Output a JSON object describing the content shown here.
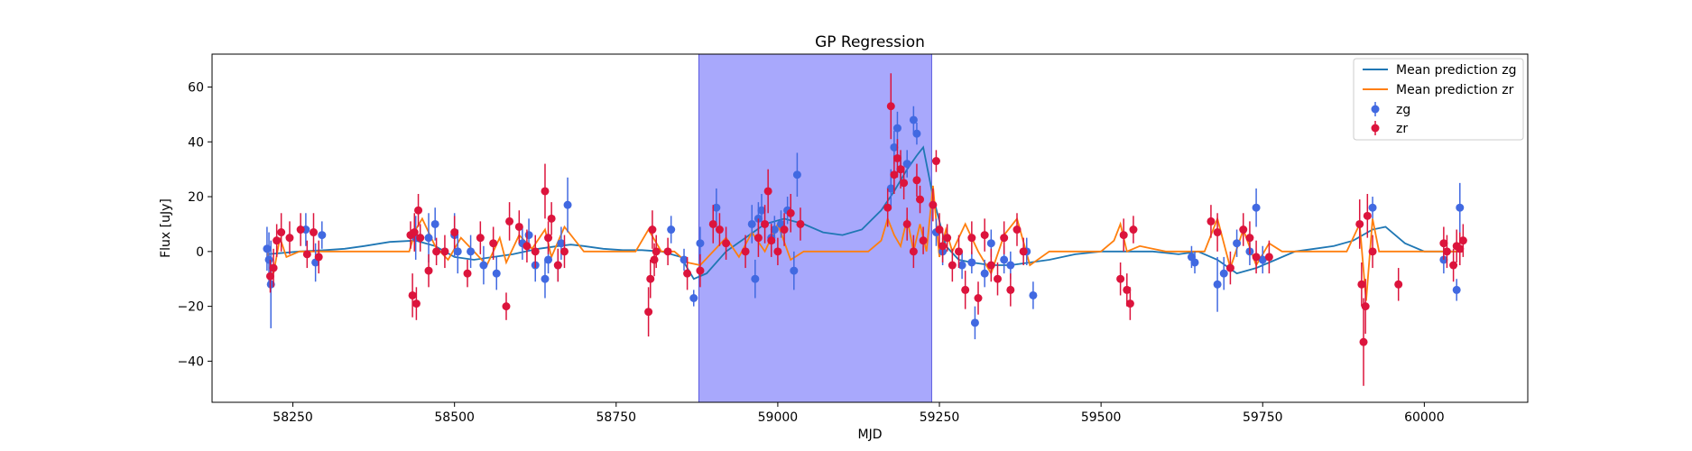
{
  "chart_data": {
    "type": "scatter",
    "title": "GP Regression",
    "xlabel": "MJD",
    "ylabel": "Flux [uJy]",
    "xlim": [
      58125,
      60160
    ],
    "ylim": [
      -55,
      72
    ],
    "xticks": [
      58250,
      58500,
      58750,
      59000,
      59250,
      59500,
      59750,
      60000
    ],
    "yticks": [
      -40,
      -20,
      0,
      20,
      40,
      60
    ],
    "grid": false,
    "legend_position": "top-right",
    "shaded_region": {
      "x_start": 58878,
      "x_end": 59238,
      "color": "#a8a8fc"
    },
    "series": [
      {
        "name": "Mean prediction zg",
        "kind": "line",
        "color": "#1f77b4",
        "x": [
          58210,
          58260,
          58300,
          58330,
          58360,
          58400,
          58440,
          58470,
          58500,
          58530,
          58560,
          58590,
          58610,
          58630,
          58660,
          58680,
          58700,
          58730,
          58760,
          58790,
          58820,
          58850,
          58870,
          58890,
          58920,
          58950,
          58980,
          59010,
          59040,
          59070,
          59100,
          59130,
          59160,
          59180,
          59200,
          59215,
          59225,
          59240,
          59260,
          59280,
          59300,
          59330,
          59360,
          59390,
          59420,
          59460,
          59500,
          59540,
          59580,
          59620,
          59650,
          59680,
          59710,
          59740,
          59770,
          59800,
          59830,
          59860,
          59890,
          59920,
          59940,
          59970,
          60000,
          60030,
          60060
        ],
        "y": [
          -1,
          0,
          0.5,
          1,
          2,
          3.5,
          4,
          2,
          -2,
          -3,
          -2,
          -1,
          0,
          1,
          2,
          2.5,
          2,
          1,
          0.5,
          0.5,
          0,
          -2,
          -10,
          -8,
          0,
          5,
          10,
          12,
          10,
          7,
          6,
          8,
          15,
          22,
          30,
          35,
          38,
          20,
          2,
          -3,
          -4,
          -5,
          -5,
          -4,
          -3,
          -1,
          0,
          0,
          0,
          -1,
          0,
          -3,
          -8,
          -6,
          -3,
          0,
          1,
          2,
          4,
          8,
          9,
          3,
          0,
          0,
          0
        ]
      },
      {
        "name": "Mean prediction zr",
        "kind": "line",
        "color": "#ff7f0e",
        "x": [
          58210,
          58220,
          58230,
          58240,
          58260,
          58300,
          58380,
          58430,
          58440,
          58450,
          58470,
          58490,
          58510,
          58530,
          58550,
          58570,
          58580,
          58600,
          58620,
          58640,
          58650,
          58670,
          58700,
          58780,
          58800,
          58820,
          58840,
          58860,
          58880,
          58900,
          58920,
          58940,
          58960,
          58980,
          59000,
          59020,
          59040,
          59080,
          59140,
          59160,
          59170,
          59180,
          59190,
          59200,
          59210,
          59220,
          59230,
          59240,
          59250,
          59260,
          59270,
          59290,
          59310,
          59330,
          59350,
          59370,
          59390,
          59420,
          59500,
          59520,
          59530,
          59540,
          59560,
          59600,
          59660,
          59680,
          59700,
          59720,
          59740,
          59760,
          59780,
          59800,
          59880,
          59900,
          59910,
          59920,
          59930,
          59950,
          59980,
          60000,
          60020,
          60040,
          60060
        ],
        "y": [
          0,
          -8,
          5,
          -2,
          0,
          0,
          0,
          0,
          8,
          12,
          2,
          -3,
          5,
          0,
          -5,
          5,
          -4,
          6,
          1,
          8,
          -2,
          9,
          0,
          0,
          8,
          0,
          0,
          -4,
          -5,
          0,
          5,
          -2,
          7,
          0,
          10,
          -3,
          0,
          0,
          0,
          4,
          12,
          6,
          2,
          12,
          0,
          10,
          0,
          24,
          -2,
          8,
          0,
          10,
          0,
          -8,
          6,
          12,
          -5,
          0,
          0,
          4,
          10,
          0,
          2,
          0,
          0,
          12,
          -6,
          8,
          -5,
          3,
          0,
          0,
          0,
          10,
          -18,
          12,
          0,
          0,
          0,
          0,
          0,
          0,
          0
        ]
      },
      {
        "name": "zg",
        "kind": "errorbar",
        "color": "#4169e1",
        "x": [
          58210,
          58213,
          58216,
          58270,
          58285,
          58295,
          58440,
          58460,
          58470,
          58500,
          58505,
          58525,
          58545,
          58565,
          58605,
          58615,
          58625,
          58640,
          58645,
          58660,
          58665,
          58675,
          58835,
          58855,
          58870,
          58880,
          58905,
          58960,
          58965,
          58970,
          58975,
          58990,
          58995,
          59005,
          59015,
          59025,
          59030,
          59175,
          59180,
          59185,
          59190,
          59200,
          59210,
          59215,
          59245,
          59255,
          59285,
          59300,
          59305,
          59320,
          59330,
          59350,
          59360,
          59385,
          59395,
          59640,
          59645,
          59680,
          59690,
          59710,
          59730,
          59740,
          59750,
          59920,
          60030,
          60050,
          60055
        ],
        "y": [
          1,
          -3,
          -12,
          8,
          -4,
          6,
          5,
          5,
          10,
          6,
          0,
          0,
          -5,
          -8,
          3,
          6,
          -5,
          -10,
          -3,
          -5,
          3,
          17,
          8,
          -3,
          -17,
          3,
          16,
          10,
          -10,
          12,
          15,
          5,
          8,
          10,
          15,
          -7,
          28,
          23,
          38,
          45,
          30,
          32,
          48,
          43,
          7,
          0,
          -5,
          -4,
          -26,
          -8,
          3,
          -3,
          -5,
          0,
          -16,
          -2,
          -4,
          -12,
          -8,
          3,
          0,
          16,
          -3,
          16,
          -3,
          -14,
          16
        ],
        "err": [
          8,
          10,
          16,
          6,
          7,
          5,
          8,
          9,
          6,
          8,
          8,
          6,
          7,
          6,
          6,
          6,
          6,
          7,
          5,
          6,
          6,
          10,
          5,
          4,
          3,
          6,
          7,
          7,
          7,
          6,
          6,
          6,
          5,
          5,
          5,
          7,
          8,
          7,
          6,
          6,
          5,
          5,
          5,
          4,
          5,
          5,
          5,
          4,
          6,
          5,
          5,
          5,
          5,
          5,
          5,
          4,
          4,
          10,
          6,
          5,
          5,
          7,
          5,
          4,
          5,
          4,
          9
        ]
      },
      {
        "name": "zr",
        "kind": "errorbar",
        "color": "#dc143c",
        "x": [
          58215,
          58220,
          58225,
          58232,
          58245,
          58262,
          58272,
          58282,
          58290,
          58432,
          58435,
          58438,
          58441,
          58444,
          58447,
          58460,
          58472,
          58485,
          58500,
          58520,
          58540,
          58560,
          58580,
          58585,
          58600,
          58612,
          58625,
          58640,
          58645,
          58650,
          58660,
          58670,
          58800,
          58803,
          58806,
          58809,
          58812,
          58830,
          58860,
          58880,
          58900,
          58910,
          58920,
          58950,
          58970,
          58980,
          58985,
          58990,
          59000,
          59010,
          59020,
          59035,
          59170,
          59175,
          59180,
          59185,
          59190,
          59195,
          59200,
          59210,
          59215,
          59220,
          59225,
          59240,
          59245,
          59250,
          59255,
          59262,
          59270,
          59280,
          59290,
          59300,
          59310,
          59320,
          59330,
          59340,
          59350,
          59360,
          59370,
          59380,
          59530,
          59535,
          59540,
          59545,
          59550,
          59670,
          59680,
          59700,
          59720,
          59730,
          59740,
          59760,
          59900,
          59903,
          59906,
          59909,
          59912,
          59920,
          59960,
          60030,
          60035,
          60045,
          60050,
          60055,
          60060
        ],
        "y": [
          -9,
          -6,
          4,
          7,
          5,
          8,
          -1,
          7,
          -2,
          6,
          -16,
          7,
          -19,
          15,
          5,
          -7,
          0,
          0,
          7,
          -8,
          5,
          3,
          -20,
          11,
          9,
          2,
          0,
          22,
          5,
          12,
          -5,
          0,
          -22,
          -10,
          8,
          -3,
          0,
          0,
          -8,
          -7,
          10,
          8,
          3,
          0,
          5,
          10,
          22,
          4,
          0,
          8,
          14,
          10,
          16,
          53,
          28,
          34,
          30,
          25,
          10,
          0,
          26,
          19,
          4,
          17,
          33,
          8,
          2,
          5,
          -5,
          0,
          -14,
          5,
          -17,
          6,
          -5,
          -10,
          5,
          -14,
          8,
          0,
          -10,
          6,
          -14,
          -19,
          8,
          11,
          7,
          -6,
          8,
          5,
          -2,
          -2,
          10,
          -12,
          -33,
          -20,
          13,
          0,
          -12,
          3,
          0,
          -5,
          2,
          1,
          4
        ],
        "err": [
          6,
          7,
          6,
          7,
          6,
          6,
          5,
          7,
          6,
          5,
          8,
          7,
          6,
          6,
          5,
          6,
          5,
          6,
          6,
          5,
          6,
          6,
          5,
          7,
          6,
          6,
          6,
          10,
          6,
          6,
          6,
          6,
          9,
          7,
          7,
          6,
          6,
          5,
          6,
          6,
          7,
          6,
          6,
          6,
          7,
          7,
          8,
          6,
          5,
          6,
          7,
          6,
          7,
          12,
          7,
          7,
          7,
          6,
          6,
          6,
          6,
          5,
          5,
          6,
          4,
          6,
          6,
          5,
          6,
          6,
          7,
          6,
          6,
          6,
          6,
          6,
          6,
          6,
          6,
          5,
          6,
          6,
          6,
          6,
          5,
          6,
          7,
          6,
          6,
          6,
          6,
          6,
          9,
          8,
          16,
          10,
          8,
          6,
          6,
          6,
          6,
          6,
          6,
          6,
          6
        ]
      }
    ]
  }
}
